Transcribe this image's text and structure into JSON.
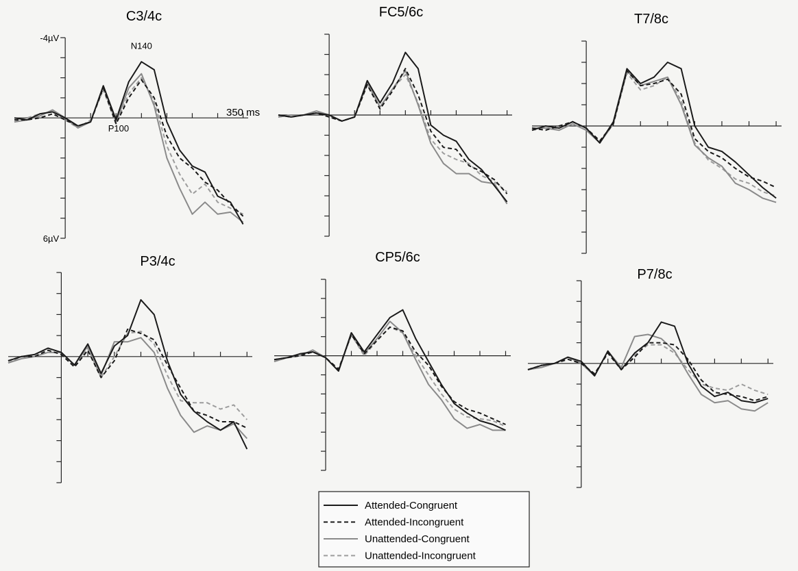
{
  "chart_data": [
    {
      "type": "line",
      "title": "C3/4c",
      "y_inverted": true,
      "x": [
        -100,
        -75,
        -50,
        -25,
        0,
        25,
        50,
        75,
        100,
        125,
        150,
        175,
        200,
        225,
        250,
        275,
        300,
        325,
        350
      ],
      "xlim": [
        -100,
        360
      ],
      "xticks": [
        {
          "value": 350,
          "label": "350 ms"
        }
      ],
      "minor_xticks": [
        50,
        100,
        150,
        200,
        250,
        300
      ],
      "ylim": [
        -4,
        6
      ],
      "yticks": [
        {
          "value": -4,
          "label": "-4µV"
        },
        {
          "value": 6,
          "label": "6µV"
        }
      ],
      "minor_yticks": [
        -3,
        -2,
        -1,
        1,
        2,
        3,
        4,
        5
      ],
      "annotations": [
        {
          "text": "N140",
          "x": 150,
          "y": -3.6
        },
        {
          "text": "P100",
          "x": 105,
          "y": 0.5
        }
      ],
      "series": [
        {
          "name": "Attended-Congruent",
          "color": "#1a1a1a",
          "dashed": false,
          "values": [
            0,
            0.1,
            -0.2,
            -0.3,
            0,
            0.4,
            0.2,
            -1.6,
            0.1,
            -1.8,
            -2.8,
            -2.4,
            0.2,
            1.6,
            2.4,
            2.7,
            3.9,
            4.2,
            5.3
          ]
        },
        {
          "name": "Attended-Incongruent",
          "color": "#1a1a1a",
          "dashed": true,
          "values": [
            0.1,
            0.1,
            0,
            -0.2,
            0.1,
            0.4,
            0.2,
            -1.5,
            0.3,
            -1.0,
            -1.9,
            -1.0,
            0.9,
            2.0,
            2.5,
            3.2,
            3.6,
            4.3,
            4.9
          ]
        },
        {
          "name": "Unattended-Congruent",
          "color": "#8a8a8a",
          "dashed": false,
          "values": [
            0.2,
            0.1,
            -0.1,
            -0.4,
            0,
            0.5,
            0.2,
            -1.6,
            0.2,
            -1.5,
            -2.2,
            -0.6,
            2.0,
            3.5,
            4.8,
            4.2,
            4.8,
            4.7,
            5.2
          ]
        },
        {
          "name": "Unattended-Incongruent",
          "color": "#9c9c9c",
          "dashed": true,
          "values": [
            0.2,
            0,
            -0.2,
            -0.3,
            0.1,
            0.5,
            0.1,
            -1.4,
            0.3,
            -1.2,
            -2.0,
            -0.8,
            1.4,
            2.8,
            3.8,
            3.3,
            4.2,
            4.5,
            4.8
          ]
        }
      ]
    },
    {
      "type": "line",
      "title": "FC5/6c",
      "y_inverted": true,
      "x": [
        -100,
        -75,
        -50,
        -25,
        0,
        25,
        50,
        75,
        100,
        125,
        150,
        175,
        200,
        225,
        250,
        275,
        300,
        325,
        350
      ],
      "xlim": [
        -100,
        360
      ],
      "minor_xticks": [
        50,
        100,
        150,
        200,
        250,
        300,
        350
      ],
      "ylim": [
        -4,
        6
      ],
      "minor_yticks": [
        -4,
        -3,
        -2,
        -1,
        1,
        2,
        3,
        4,
        5,
        6
      ],
      "series": [
        {
          "name": "Attended-Congruent",
          "color": "#1a1a1a",
          "dashed": false,
          "values": [
            0,
            0.1,
            0,
            -0.1,
            0,
            0.3,
            0.1,
            -1.7,
            -0.6,
            -1.6,
            -3.1,
            -2.3,
            0.5,
            1.0,
            1.3,
            2.2,
            2.7,
            3.5,
            4.3
          ]
        },
        {
          "name": "Attended-Incongruent",
          "color": "#1a1a1a",
          "dashed": true,
          "values": [
            0,
            0.1,
            0,
            -0.1,
            0.1,
            0.3,
            0.1,
            -1.5,
            -0.3,
            -1.2,
            -2.3,
            -1.0,
            0.8,
            1.6,
            1.7,
            2.5,
            2.8,
            3.2,
            3.9
          ]
        },
        {
          "name": "Unattended-Congruent",
          "color": "#8a8a8a",
          "dashed": false,
          "values": [
            0.1,
            0,
            0,
            -0.2,
            0,
            0.3,
            0.1,
            -1.6,
            -0.4,
            -1.3,
            -2.2,
            -0.5,
            1.4,
            2.4,
            2.9,
            2.9,
            3.3,
            3.4,
            4.4
          ]
        },
        {
          "name": "Unattended-Incongruent",
          "color": "#9c9c9c",
          "dashed": true,
          "values": [
            0.1,
            0,
            0,
            -0.2,
            0.1,
            0.3,
            0.1,
            -1.5,
            -0.4,
            -1.3,
            -2.0,
            -0.6,
            1.2,
            1.9,
            2.2,
            2.4,
            3.0,
            3.3,
            3.8
          ]
        }
      ]
    },
    {
      "type": "line",
      "title": "T7/8c",
      "y_inverted": true,
      "x": [
        -100,
        -75,
        -50,
        -25,
        0,
        25,
        50,
        75,
        100,
        125,
        150,
        175,
        200,
        225,
        250,
        275,
        300,
        325,
        350
      ],
      "xlim": [
        -100,
        360
      ],
      "minor_xticks": [
        50,
        100,
        150,
        200,
        250,
        300,
        350
      ],
      "ylim": [
        -4,
        6
      ],
      "minor_yticks": [
        -4,
        -3,
        -2,
        -1,
        1,
        2,
        3,
        4,
        5,
        6
      ],
      "series": [
        {
          "name": "Attended-Congruent",
          "color": "#1a1a1a",
          "dashed": false,
          "values": [
            0.2,
            0,
            0.1,
            -0.2,
            0.1,
            0.8,
            -0.2,
            -2.7,
            -2.0,
            -2.3,
            -3.0,
            -2.7,
            0,
            1.0,
            1.2,
            1.7,
            2.3,
            2.9,
            3.4
          ]
        },
        {
          "name": "Attended-Incongruent",
          "color": "#1a1a1a",
          "dashed": true,
          "values": [
            0.1,
            0.2,
            0,
            -0.2,
            0.1,
            0.7,
            -0.1,
            -2.6,
            -1.9,
            -2.0,
            -2.2,
            -1.5,
            0.6,
            1.2,
            1.5,
            2.0,
            2.4,
            2.6,
            2.9
          ]
        },
        {
          "name": "Unattended-Congruent",
          "color": "#8a8a8a",
          "dashed": false,
          "values": [
            0.1,
            0.1,
            0.2,
            -0.1,
            0.2,
            0.8,
            -0.1,
            -2.6,
            -1.9,
            -2.1,
            -2.3,
            -1.0,
            0.9,
            1.5,
            1.9,
            2.7,
            3.0,
            3.4,
            3.6
          ]
        },
        {
          "name": "Unattended-Incongruent",
          "color": "#9c9c9c",
          "dashed": true,
          "values": [
            0.2,
            0.1,
            0.1,
            -0.2,
            0.1,
            0.8,
            -0.2,
            -2.5,
            -1.7,
            -1.9,
            -2.3,
            -1.2,
            0.8,
            1.6,
            2.0,
            2.5,
            2.7,
            3.1,
            3.3
          ]
        }
      ]
    },
    {
      "type": "line",
      "title": "P3/4c",
      "y_inverted": true,
      "x": [
        -100,
        -75,
        -50,
        -25,
        0,
        25,
        50,
        75,
        100,
        125,
        150,
        175,
        200,
        225,
        250,
        275,
        300,
        325,
        350
      ],
      "xlim": [
        -100,
        360
      ],
      "minor_xticks": [
        50,
        100,
        150,
        200,
        250,
        300,
        350
      ],
      "ylim": [
        -4,
        6
      ],
      "minor_yticks": [
        -4,
        -3,
        -2,
        -1,
        1,
        2,
        3,
        4,
        5,
        6
      ],
      "series": [
        {
          "name": "Attended-Congruent",
          "color": "#1a1a1a",
          "dashed": false,
          "values": [
            0.2,
            0,
            -0.1,
            -0.4,
            -0.2,
            0.4,
            -0.6,
            0.8,
            -0.5,
            -1.0,
            -2.7,
            -2.0,
            0.2,
            1.8,
            2.6,
            3.1,
            3.5,
            3.1,
            4.4
          ]
        },
        {
          "name": "Attended-Incongruent",
          "color": "#1a1a1a",
          "dashed": true,
          "values": [
            0.2,
            0,
            0,
            -0.3,
            -0.1,
            0.5,
            -0.3,
            1.0,
            0.2,
            -1.3,
            -1.1,
            -0.8,
            0.4,
            1.5,
            2.6,
            2.8,
            3.1,
            3.1,
            3.4
          ]
        },
        {
          "name": "Unattended-Congruent",
          "color": "#8a8a8a",
          "dashed": false,
          "values": [
            0.3,
            0.1,
            0,
            -0.2,
            -0.2,
            0.4,
            -0.5,
            0.9,
            -0.7,
            -0.7,
            -0.9,
            -0.2,
            1.5,
            2.8,
            3.6,
            3.3,
            3.5,
            3.2,
            3.9
          ]
        },
        {
          "name": "Unattended-Incongruent",
          "color": "#9c9c9c",
          "dashed": true,
          "values": [
            0.3,
            0,
            -0.1,
            -0.3,
            -0.1,
            0.5,
            -0.4,
            1.0,
            0,
            -1.1,
            -1.2,
            -0.6,
            0.9,
            2.1,
            2.2,
            2.2,
            2.5,
            2.3,
            3.0
          ]
        }
      ]
    },
    {
      "type": "line",
      "title": "CP5/6c",
      "y_inverted": true,
      "x": [
        -100,
        -75,
        -50,
        -25,
        0,
        25,
        50,
        75,
        100,
        125,
        150,
        175,
        200,
        225,
        250,
        275,
        300,
        325,
        350
      ],
      "xlim": [
        -100,
        360
      ],
      "minor_xticks": [
        50,
        100,
        150,
        200,
        250,
        300,
        350
      ],
      "ylim": [
        -4,
        6
      ],
      "minor_yticks": [
        -4,
        -3,
        -2,
        -1,
        1,
        2,
        3,
        4,
        5,
        6
      ],
      "series": [
        {
          "name": "Attended-Congruent",
          "color": "#1a1a1a",
          "dashed": false,
          "values": [
            0.2,
            0.1,
            -0.1,
            -0.2,
            0.1,
            0.8,
            -1.2,
            -0.2,
            -1.1,
            -2.0,
            -2.4,
            -0.9,
            0.3,
            1.5,
            2.5,
            3.0,
            3.4,
            3.6,
            3.9
          ]
        },
        {
          "name": "Attended-Incongruent",
          "color": "#1a1a1a",
          "dashed": true,
          "values": [
            0.2,
            0.1,
            0,
            -0.2,
            0.1,
            0.7,
            -1.1,
            -0.1,
            -0.8,
            -1.5,
            -1.3,
            -0.2,
            0.5,
            1.6,
            2.4,
            2.8,
            3.0,
            3.3,
            3.6
          ]
        },
        {
          "name": "Unattended-Congruent",
          "color": "#8a8a8a",
          "dashed": false,
          "values": [
            0.3,
            0.1,
            0,
            -0.3,
            0.1,
            0.8,
            -1.2,
            -0.1,
            -0.9,
            -1.8,
            -1.2,
            0.2,
            1.5,
            2.3,
            3.3,
            3.8,
            3.6,
            3.9,
            3.9
          ]
        },
        {
          "name": "Unattended-Incongruent",
          "color": "#9c9c9c",
          "dashed": true,
          "values": [
            0.3,
            0.1,
            0,
            -0.2,
            0.1,
            0.8,
            -1.1,
            0,
            -0.8,
            -1.5,
            -1.2,
            0,
            1.0,
            2.0,
            2.8,
            3.2,
            3.3,
            3.4,
            3.7
          ]
        }
      ]
    },
    {
      "type": "line",
      "title": "P7/8c",
      "y_inverted": true,
      "x": [
        -100,
        -75,
        -50,
        -25,
        0,
        25,
        50,
        75,
        100,
        125,
        150,
        175,
        200,
        225,
        250,
        275,
        300,
        325,
        350
      ],
      "xlim": [
        -100,
        360
      ],
      "minor_xticks": [
        50,
        100,
        150,
        200,
        250,
        300,
        350
      ],
      "ylim": [
        -4,
        6
      ],
      "minor_yticks": [
        -4,
        -3,
        -2,
        -1,
        1,
        2,
        3,
        4,
        5,
        6
      ],
      "series": [
        {
          "name": "Attended-Congruent",
          "color": "#1a1a1a",
          "dashed": false,
          "values": [
            0.3,
            0.1,
            0,
            -0.3,
            -0.1,
            0.6,
            -0.6,
            0.3,
            -0.5,
            -1.0,
            -2.0,
            -1.8,
            0,
            1.1,
            1.6,
            1.4,
            1.8,
            1.9,
            1.7
          ]
        },
        {
          "name": "Attended-Incongruent",
          "color": "#1a1a1a",
          "dashed": true,
          "values": [
            0.3,
            0.1,
            0,
            -0.2,
            0,
            0.5,
            -0.5,
            0.3,
            -0.3,
            -1.0,
            -1.0,
            -0.9,
            -0.2,
            0.8,
            1.4,
            1.5,
            1.6,
            1.8,
            1.6
          ]
        },
        {
          "name": "Unattended-Congruent",
          "color": "#8a8a8a",
          "dashed": false,
          "values": [
            0.3,
            0.2,
            0,
            -0.3,
            0,
            0.6,
            -0.6,
            0.2,
            -1.3,
            -1.4,
            -1.2,
            -0.6,
            0.5,
            1.5,
            1.9,
            1.8,
            2.2,
            2.3,
            1.9
          ]
        },
        {
          "name": "Unattended-Incongruent",
          "color": "#9c9c9c",
          "dashed": true,
          "values": [
            0.3,
            0.1,
            0,
            -0.2,
            0,
            0.5,
            -0.5,
            0.3,
            -0.4,
            -0.9,
            -0.9,
            -0.5,
            0.3,
            1.0,
            1.2,
            1.3,
            1.0,
            1.3,
            1.5
          ]
        }
      ]
    }
  ]
}
